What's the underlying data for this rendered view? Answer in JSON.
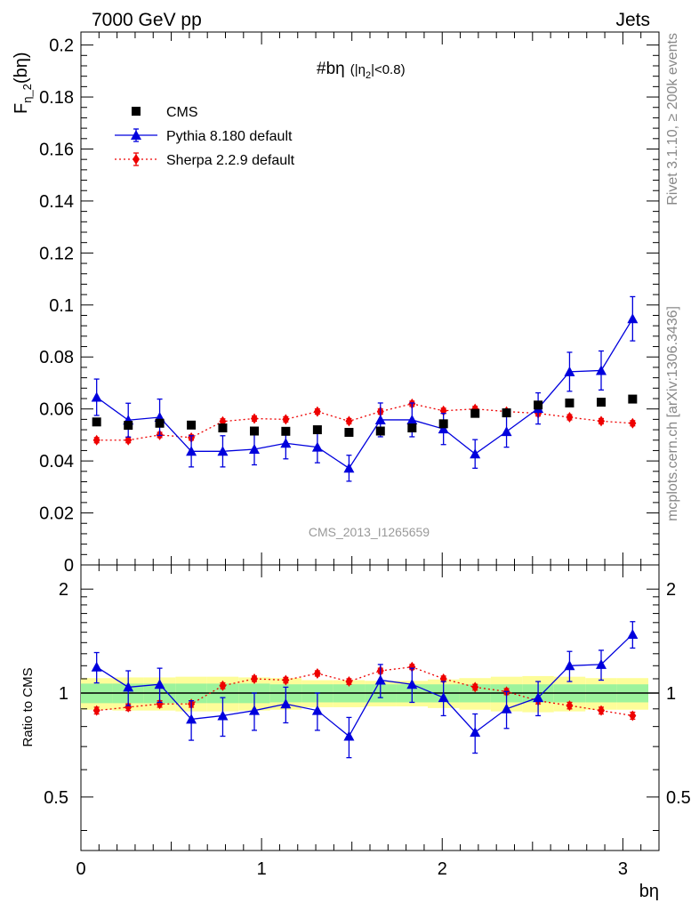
{
  "header": {
    "energy_label": "7000 GeV pp",
    "category_label": "Jets"
  },
  "side_labels": {
    "rivet": "Rivet 3.1.10, ≥ 200k events",
    "mcplots": "mcplots.cern.ch [arXiv:1306.3436]"
  },
  "chart_data": [
    {
      "type": "scatter",
      "panel": "main",
      "title_main": "#bη",
      "title_cond_open": "(|η",
      "title_cond_sub": "2",
      "title_cond_close": "|<0.8)",
      "ylabel_main": "F",
      "ylabel_sub": "η_2",
      "ylabel_tail": "(bη)",
      "watermark": "CMS_2013_I1265659",
      "xlim": [
        0,
        3.2
      ],
      "ylim": [
        0,
        0.205
      ],
      "y_ticks": [
        0,
        0.02,
        0.04,
        0.06,
        0.08,
        0.1,
        0.12,
        0.14,
        0.16,
        0.18,
        0.2
      ],
      "y_tick_labels": [
        "0",
        "0.02",
        "0.04",
        "0.06",
        "0.08",
        "0.1",
        "0.12",
        "0.14",
        "0.16",
        "0.18",
        "0.2"
      ],
      "legend_position": "top-left",
      "x": [
        0.087,
        0.262,
        0.436,
        0.611,
        0.785,
        0.96,
        1.134,
        1.309,
        1.484,
        1.658,
        1.833,
        2.007,
        2.182,
        2.356,
        2.531,
        2.705,
        2.88,
        3.054
      ],
      "series": [
        {
          "name": "CMS",
          "color": "#000000",
          "marker": "square",
          "values": [
            0.055,
            0.0537,
            0.0545,
            0.0538,
            0.0527,
            0.0515,
            0.0514,
            0.052,
            0.051,
            0.0515,
            0.0527,
            0.0543,
            0.0583,
            0.0585,
            0.0615,
            0.0623,
            0.0626,
            0.0638
          ]
        },
        {
          "name": "Pythia 8.180 default",
          "color": "#0000dd",
          "marker": "triangle",
          "line": "solid",
          "values": [
            0.0645,
            0.0557,
            0.0568,
            0.0437,
            0.0437,
            0.0445,
            0.0468,
            0.0453,
            0.0372,
            0.0558,
            0.0558,
            0.0523,
            0.0427,
            0.0513,
            0.0602,
            0.0743,
            0.0748,
            0.0947
          ],
          "errors": [
            0.007,
            0.0065,
            0.007,
            0.006,
            0.006,
            0.006,
            0.006,
            0.006,
            0.005,
            0.0065,
            0.0065,
            0.006,
            0.0055,
            0.006,
            0.006,
            0.0075,
            0.0075,
            0.0085
          ]
        },
        {
          "name": "Sherpa 2.2.9 default",
          "color": "#ee0000",
          "marker": "diamond",
          "line": "dotted",
          "values": [
            0.048,
            0.048,
            0.05,
            0.049,
            0.0552,
            0.0563,
            0.056,
            0.059,
            0.0553,
            0.059,
            0.062,
            0.0593,
            0.06,
            0.059,
            0.0583,
            0.0568,
            0.0553,
            0.0545
          ],
          "errors": [
            0.001,
            0.001,
            0.001,
            0.001,
            0.001,
            0.001,
            0.001,
            0.001,
            0.001,
            0.001,
            0.001,
            0.001,
            0.001,
            0.001,
            0.001,
            0.001,
            0.001,
            0.001
          ]
        }
      ]
    },
    {
      "type": "scatter",
      "panel": "ratio",
      "ylabel": "Ratio to CMS",
      "xlabel": "bη",
      "ylim": [
        0.35,
        2.35
      ],
      "xlim": [
        0,
        3.2
      ],
      "x_ticks": [
        0,
        1,
        2,
        3
      ],
      "x_tick_labels": [
        "0",
        "1",
        "2",
        "3"
      ],
      "y_ticks": [
        0.5,
        1,
        2
      ],
      "y_tick_labels": [
        "0.5",
        "1",
        "2"
      ],
      "band_inner": [
        0.065,
        0.065,
        0.065,
        0.065,
        0.065,
        0.065,
        0.06,
        0.06,
        0.06,
        0.06,
        0.06,
        0.06,
        0.06,
        0.06,
        0.06,
        0.06,
        0.06,
        0.06
      ],
      "band_outer": [
        0.105,
        0.11,
        0.11,
        0.115,
        0.115,
        0.11,
        0.105,
        0.09,
        0.09,
        0.085,
        0.085,
        0.095,
        0.105,
        0.115,
        0.12,
        0.115,
        0.105,
        0.105
      ],
      "series": [
        {
          "name": "Pythia 8.180 default",
          "color": "#0000dd",
          "values": [
            1.19,
            1.04,
            1.06,
            0.84,
            0.86,
            0.89,
            0.93,
            0.89,
            0.75,
            1.09,
            1.06,
            0.97,
            0.77,
            0.9,
            0.97,
            1.2,
            1.21,
            1.48
          ],
          "errors": [
            0.12,
            0.12,
            0.12,
            0.11,
            0.11,
            0.11,
            0.11,
            0.11,
            0.1,
            0.12,
            0.12,
            0.11,
            0.1,
            0.11,
            0.11,
            0.12,
            0.12,
            0.13
          ]
        },
        {
          "name": "Sherpa 2.2.9 default",
          "color": "#ee0000",
          "values": [
            0.89,
            0.91,
            0.93,
            0.93,
            1.05,
            1.1,
            1.09,
            1.14,
            1.08,
            1.16,
            1.19,
            1.1,
            1.04,
            1.01,
            0.95,
            0.92,
            0.89,
            0.86
          ],
          "errors": [
            0.02,
            0.02,
            0.02,
            0.02,
            0.02,
            0.02,
            0.02,
            0.02,
            0.02,
            0.02,
            0.02,
            0.02,
            0.02,
            0.02,
            0.02,
            0.02,
            0.02,
            0.02
          ]
        }
      ]
    }
  ]
}
